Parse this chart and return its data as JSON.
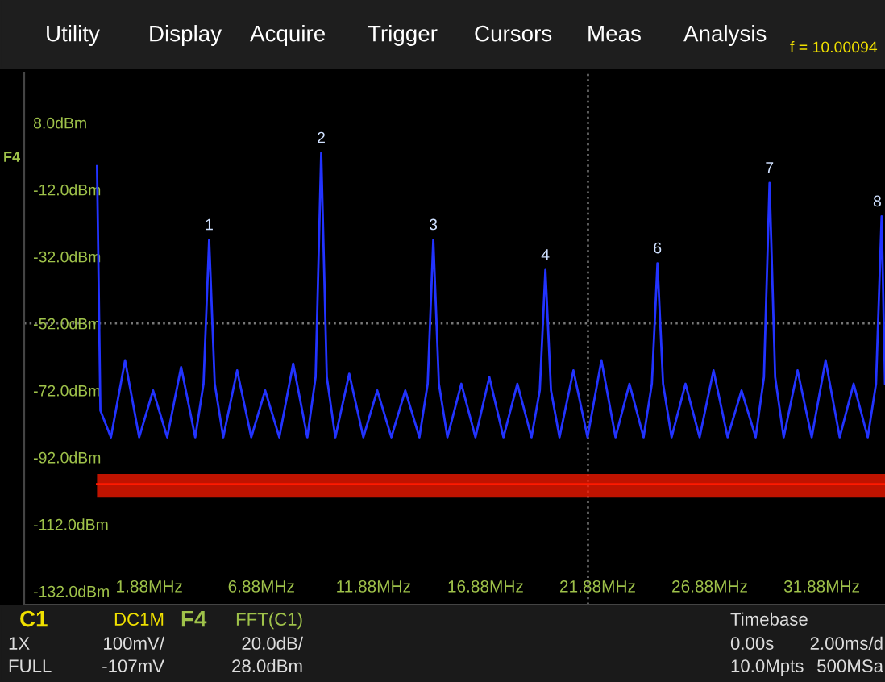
{
  "chart_data": {
    "type": "line",
    "x": [
      -0.45,
      -0.3,
      0.17,
      0.8,
      1.43,
      2.05,
      2.68,
      3.3,
      3.93,
      4.3,
      4.55,
      4.8,
      5.18,
      5.8,
      6.43,
      7.05,
      7.68,
      8.3,
      8.93,
      9.3,
      9.55,
      9.8,
      10.18,
      10.8,
      11.43,
      12.05,
      12.68,
      13.3,
      13.93,
      14.3,
      14.55,
      14.8,
      15.18,
      15.8,
      16.43,
      17.05,
      17.68,
      18.3,
      18.93,
      19.3,
      19.55,
      19.8,
      20.18,
      20.8,
      21.43,
      22.05,
      22.68,
      23.3,
      23.93,
      24.3,
      24.55,
      24.8,
      25.18,
      25.8,
      26.43,
      27.05,
      27.68,
      28.3,
      28.93,
      29.3,
      29.55,
      29.8,
      30.18,
      30.8,
      31.43,
      32.05,
      32.68,
      33.3,
      33.93,
      34.3,
      34.55,
      34.7
    ],
    "series": [
      {
        "color": "#2233ff",
        "values": [
          -5,
          -78,
          -86,
          -63,
          -86,
          -72,
          -86,
          -65,
          -86,
          -70,
          -27,
          -70,
          -86,
          -66,
          -86,
          -72,
          -86,
          -64,
          -86,
          -68,
          -1,
          -68,
          -86,
          -67,
          -86,
          -72,
          -86,
          -72,
          -86,
          -70,
          -27,
          -70,
          -86,
          -70,
          -86,
          -68,
          -86,
          -70,
          -86,
          -72,
          -36,
          -72,
          -86,
          -66,
          -86,
          -63,
          -86,
          -70,
          -86,
          -70,
          -34,
          -70,
          -86,
          -70,
          -86,
          -66,
          -86,
          -72,
          -86,
          -68,
          -10,
          -68,
          -86,
          -66,
          -86,
          -63,
          -86,
          -70,
          -86,
          -70,
          -20,
          -70
        ]
      },
      {
        "color": "#ff1a00",
        "x": [
          -0.45,
          34.7
        ],
        "values": [
          -100,
          -100
        ],
        "lower": [
          -104,
          -104
        ],
        "upper": [
          -97,
          -97
        ]
      }
    ],
    "xlim": [
      -3.7,
      34.7
    ],
    "ylim": [
      -136,
      23
    ],
    "xticks": [
      {
        "value": 1.88,
        "label": "1.88MHz"
      },
      {
        "value": 6.88,
        "label": "6.88MHz"
      },
      {
        "value": 11.88,
        "label": "11.88MHz"
      },
      {
        "value": 16.88,
        "label": "16.88MHz"
      },
      {
        "value": 21.88,
        "label": "21.88MHz"
      },
      {
        "value": 26.88,
        "label": "26.88MHz"
      },
      {
        "value": 31.88,
        "label": "31.88MHz"
      }
    ],
    "yticks": [
      {
        "value": 8,
        "label": "8.0dBm"
      },
      {
        "value": -12,
        "label": "-12.0dBm"
      },
      {
        "value": -32,
        "label": "-32.0dBm"
      },
      {
        "value": -52,
        "label": "-52.0dBm"
      },
      {
        "value": -72,
        "label": "-72.0dBm"
      },
      {
        "value": -92,
        "label": "-92.0dBm"
      },
      {
        "value": -112,
        "label": "-112.0dBm"
      },
      {
        "value": -132,
        "label": "-132.0dBm"
      }
    ],
    "ref_lines": [
      {
        "axis": "y",
        "value": -52,
        "color": "#777777",
        "line_style": "dotted"
      },
      {
        "axis": "x",
        "value": 21.45,
        "color": "#777777",
        "line_style": "dotted"
      }
    ],
    "grid": false,
    "annotations": [
      "Utility",
      "Display",
      "Acquire",
      "Trigger",
      "Cursors",
      "Meas",
      "Analysis",
      "f = 10.00094",
      "F4",
      "C1",
      "DC1M",
      "1X",
      "100mV/",
      "FULL",
      "-107mV",
      "F4",
      "FFT(C1)",
      "20.0dB/",
      "28.0dBm",
      "Timebase",
      "0.00s",
      "2.00ms/d",
      "10.0Mpts",
      "500MSa",
      {
        "text": "1",
        "x": 4.55,
        "y": -27
      },
      {
        "text": "2",
        "x": 9.55,
        "y": -1
      },
      {
        "text": "3",
        "x": 14.55,
        "y": -27
      },
      {
        "text": "4",
        "x": 19.55,
        "y": -36
      },
      {
        "text": "6",
        "x": 24.55,
        "y": -34
      },
      {
        "text": "7",
        "x": 29.55,
        "y": -10
      },
      {
        "text": "8",
        "x": 34.55,
        "y": -20
      }
    ]
  }
}
